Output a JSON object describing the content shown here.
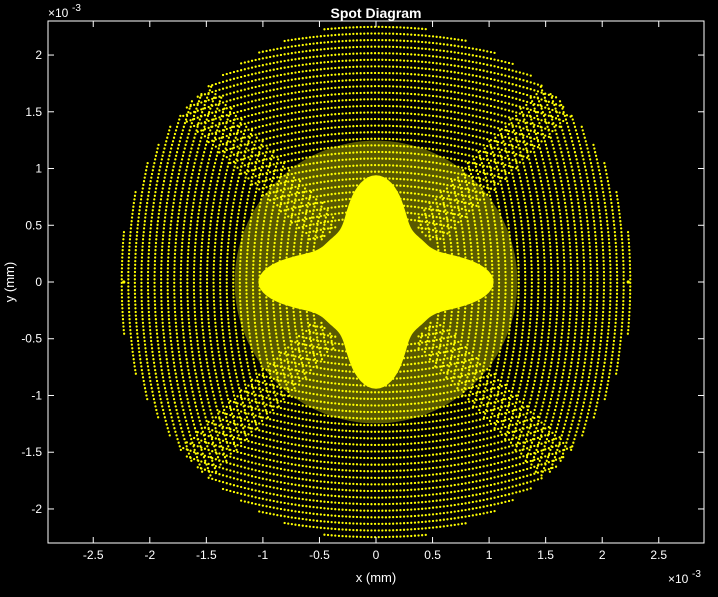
{
  "chart_data": {
    "type": "scatter",
    "title": "Spot Diagram",
    "xlabel": "x (mm)",
    "ylabel": "y (mm)",
    "x_exponent_label": {
      "base": "×10",
      "exponent": "-3"
    },
    "y_exponent_label": {
      "base": "×10",
      "exponent": "-3"
    },
    "xlim": [
      -2.9,
      2.9
    ],
    "ylim": [
      -2.3,
      2.3
    ],
    "x_ticks": [
      -2.5,
      -2,
      -1.5,
      -1,
      -0.5,
      0,
      0.5,
      1,
      1.5,
      2,
      2.5
    ],
    "x_tick_labels": [
      "-2.5",
      "-2",
      "-1.5",
      "-1",
      "-0.5",
      "0",
      "0.5",
      "1",
      "1.5",
      "2",
      "2.5"
    ],
    "y_ticks": [
      -2,
      -1.5,
      -1,
      -0.5,
      0,
      0.5,
      1,
      1.5,
      2
    ],
    "y_tick_labels": [
      "-2",
      "-1.5",
      "-1",
      "-0.5",
      "0",
      "0.5",
      "1",
      "1.5",
      "2"
    ],
    "grid": false,
    "scale": "1e-3 mm",
    "spot": {
      "center": [
        0,
        0
      ],
      "radius": 2.28,
      "outline": "polygonal (~40 facets)",
      "pattern": "dense core with four-fold ring fringes",
      "outlier_points": [
        [
          -2.28,
          0
        ],
        [
          2.28,
          0
        ]
      ]
    },
    "colors": {
      "background": "#000000",
      "axes": "#ffffff",
      "points": "#ffff00"
    }
  }
}
